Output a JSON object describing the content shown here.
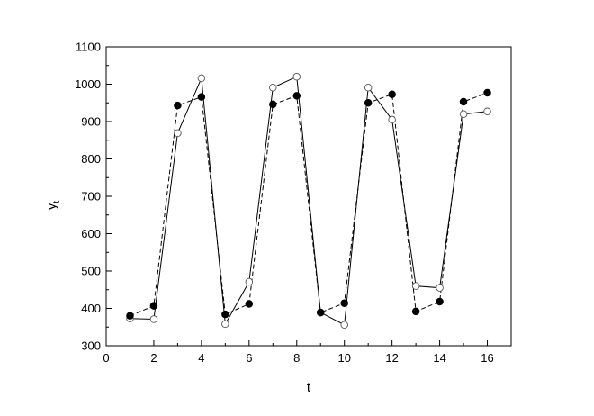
{
  "chart_data": {
    "type": "line",
    "xlabel": "t",
    "ylabel": "y",
    "ylabel_subscript": "t",
    "xlim": [
      0,
      17
    ],
    "ylim": [
      300,
      1100
    ],
    "xticks": [
      0,
      2,
      4,
      6,
      8,
      10,
      12,
      14,
      16
    ],
    "yticks": [
      300,
      400,
      500,
      600,
      700,
      800,
      900,
      1000,
      1100
    ],
    "x": [
      1,
      2,
      3,
      4,
      5,
      6,
      7,
      8,
      9,
      10,
      11,
      12,
      13,
      14,
      15,
      16
    ],
    "series": [
      {
        "marker": "open-circle",
        "line": "solid",
        "values": [
          373,
          371,
          869,
          1016,
          358,
          471,
          991,
          1020,
          389,
          356,
          991,
          905,
          460,
          455,
          920,
          927
        ]
      },
      {
        "marker": "filled-circle",
        "line": "dashed",
        "values": [
          380,
          407,
          943,
          966,
          384,
          412,
          946,
          969,
          389,
          414,
          950,
          973,
          392,
          418,
          953,
          977
        ]
      }
    ],
    "grid": false,
    "legend": "none"
  }
}
